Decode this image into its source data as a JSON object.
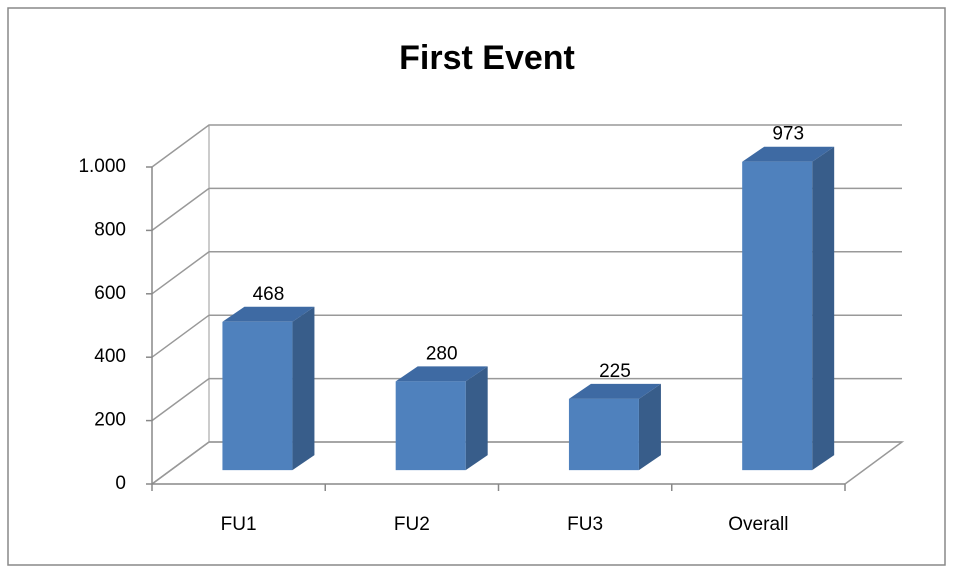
{
  "chart_data": {
    "type": "bar3d",
    "title": "First Event",
    "categories": [
      "FU1",
      "FU2",
      "FU3",
      "Overall"
    ],
    "values": [
      468,
      280,
      225,
      973
    ],
    "color": "#4f81bd",
    "ylim": [
      0,
      1000
    ],
    "yticks": [
      0,
      200,
      400,
      600,
      800,
      {
        "value": 1000,
        "label": "1.000"
      }
    ],
    "grid": true
  }
}
